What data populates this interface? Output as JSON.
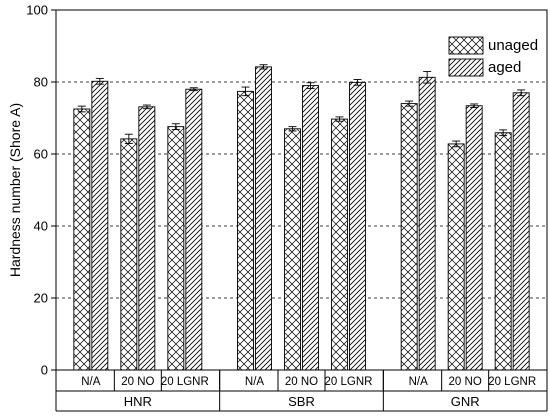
{
  "chart_data": {
    "type": "bar",
    "ylabel": "Hardness number (Shore A)",
    "ylim": [
      0,
      100
    ],
    "yticks": [
      0,
      20,
      40,
      60,
      80,
      100
    ],
    "grid": "horizontal dashed",
    "legend_position": "top-right",
    "groups": [
      {
        "label": "HNR",
        "categories": [
          "N/A",
          "20 NO",
          "20 LGNR"
        ]
      },
      {
        "label": "SBR",
        "categories": [
          "N/A",
          "20 NO",
          "20 LGNR"
        ]
      },
      {
        "label": "GNR",
        "categories": [
          "N/A",
          "20 NO",
          "20 LGNR"
        ]
      }
    ],
    "series": [
      {
        "name": "unaged",
        "pattern": "crosshatch",
        "values": [
          72.5,
          64.2,
          67.6,
          77.4,
          67.0,
          69.7,
          74.0,
          62.8,
          65.9
        ],
        "errors": [
          0.8,
          1.3,
          0.8,
          1.2,
          0.6,
          0.6,
          0.7,
          0.8,
          0.8
        ]
      },
      {
        "name": "aged",
        "pattern": "diagonal",
        "values": [
          80.2,
          73.1,
          78.0,
          84.2,
          79.0,
          79.9,
          81.3,
          73.4,
          77.0
        ],
        "errors": [
          0.8,
          0.5,
          0.4,
          0.6,
          0.8,
          0.8,
          1.6,
          0.5,
          0.8
        ]
      }
    ]
  },
  "colors": {
    "bar_stroke": "#000000",
    "grid": "#000000",
    "background": "#ffffff"
  }
}
